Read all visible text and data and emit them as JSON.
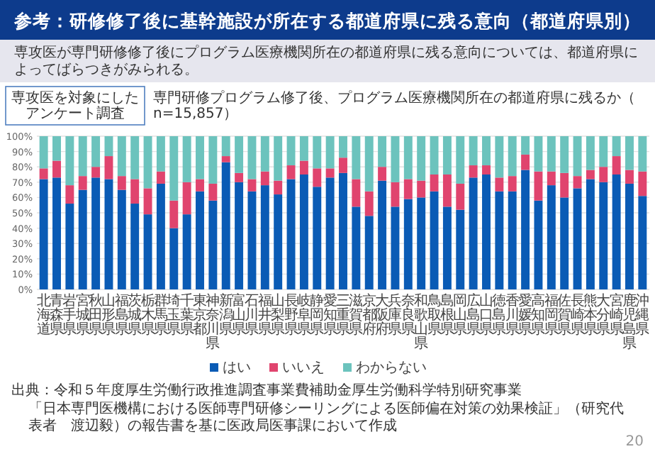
{
  "chart_data": {
    "type": "bar",
    "stacked": true,
    "title": "参考：研修修了後に基幹施設が所在する都道府県に残る意向（都道府県別）",
    "subtitle": "専攻医が専門研修修了後にプログラム医療機関所在の都道府県に残る意向については、都道府県によってばらつきがみられる。",
    "annotations": [
      "専攻医を対象にしたアンケート調査",
      "専門研修プログラム修了後、プログラム医療機関所在の都道府県に残るか（n=15,857）",
      "出典：令和５年度厚生労働行政推進調査事業費補助金厚生労働科学特別研究事業",
      "「日本専門医機構における医師専門研修シーリングによる医師偏在対策の効果検証」（研究代表者　渡辺毅）の報告書を基に医政局医事課において作成",
      "20"
    ],
    "categories": [
      "北海道",
      "青森県",
      "岩手県",
      "宮城県",
      "秋田県",
      "山形県",
      "福島県",
      "茨城県",
      "栃木県",
      "群馬県",
      "埼玉県",
      "千葉県",
      "東京都",
      "神奈川県",
      "新潟県",
      "富山県",
      "石川県",
      "福井県",
      "山梨県",
      "長野県",
      "岐阜県",
      "静岡県",
      "愛知県",
      "三重県",
      "滋賀県",
      "京都府",
      "大阪府",
      "兵庫県",
      "奈良県",
      "和歌山県",
      "鳥取県",
      "島根県",
      "岡山県",
      "広島県",
      "山口県",
      "徳島県",
      "香川県",
      "愛媛県",
      "高知県",
      "福岡県",
      "佐賀県",
      "長崎県",
      "熊本県",
      "大分県",
      "宮崎県",
      "鹿児島県",
      "沖縄県"
    ],
    "series": [
      {
        "name": "はい",
        "color": "#0a5bb5",
        "values": [
          72,
          73,
          56,
          65,
          73,
          72,
          65,
          56,
          49,
          69,
          40,
          49,
          64,
          58,
          83,
          70,
          64,
          68,
          62,
          72,
          75,
          67,
          73,
          76,
          54,
          48,
          71,
          54,
          59,
          60,
          64,
          54,
          52,
          73,
          75,
          64,
          64,
          78,
          58,
          68,
          60,
          66,
          72,
          70,
          75,
          69,
          61
        ]
      },
      {
        "name": "いいえ",
        "color": "#e0446e",
        "values": [
          7,
          11,
          12,
          9,
          7,
          15,
          9,
          16,
          17,
          8,
          18,
          21,
          8,
          11,
          4,
          6,
          8,
          9,
          9,
          9,
          9,
          12,
          6,
          10,
          18,
          16,
          9,
          16,
          13,
          11,
          11,
          21,
          17,
          8,
          6,
          9,
          10,
          10,
          19,
          9,
          16,
          8,
          6,
          10,
          12,
          9,
          16
        ]
      },
      {
        "name": "わからない",
        "color": "#6cc3bd",
        "values": [
          21,
          16,
          32,
          26,
          20,
          13,
          26,
          28,
          34,
          23,
          42,
          30,
          28,
          31,
          13,
          24,
          28,
          23,
          29,
          19,
          16,
          21,
          21,
          14,
          28,
          36,
          20,
          30,
          28,
          29,
          25,
          25,
          31,
          19,
          19,
          27,
          26,
          12,
          23,
          23,
          24,
          26,
          22,
          20,
          13,
          22,
          23
        ]
      }
    ],
    "ylim": [
      0,
      100
    ],
    "yticks": [
      {
        "value": 0,
        "label": "0%"
      },
      {
        "value": 10,
        "label": "10%"
      },
      {
        "value": 20,
        "label": "20%"
      },
      {
        "value": 30,
        "label": "30%"
      },
      {
        "value": 40,
        "label": "40%"
      },
      {
        "value": 50,
        "label": "50%"
      },
      {
        "value": 60,
        "label": "60%"
      },
      {
        "value": 70,
        "label": "70%"
      },
      {
        "value": 80,
        "label": "80%"
      },
      {
        "value": 90,
        "label": "90%"
      },
      {
        "value": 100,
        "label": "100%"
      }
    ],
    "grid": "y",
    "legend": "bottom"
  }
}
